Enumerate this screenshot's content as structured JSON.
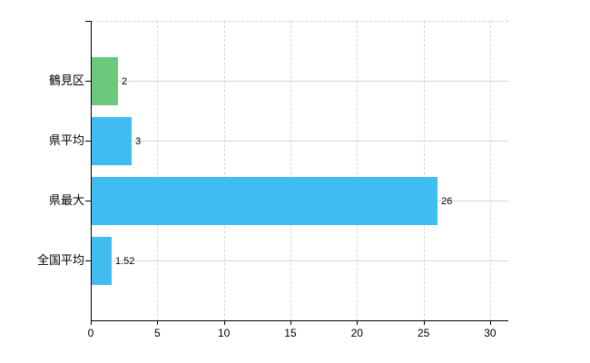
{
  "chart_data": {
    "type": "bar",
    "orientation": "horizontal",
    "title": "",
    "categories": [
      "鶴見区",
      "県平均",
      "県最大",
      "全国平均"
    ],
    "values": [
      2,
      3,
      26,
      1.52
    ],
    "value_labels": [
      "2",
      "3",
      "26",
      "1.52"
    ],
    "bar_colors": [
      "#6cc97c",
      "#3fbdf0",
      "#3fbdf0",
      "#3fbdf0"
    ],
    "xticks": [
      0,
      5,
      10,
      15,
      20,
      25,
      30
    ],
    "xtick_labels": [
      "0",
      "5",
      "10",
      "15",
      "20",
      "25",
      "30"
    ],
    "xlim": [
      0,
      31.3
    ],
    "grid": {
      "vertical": "dashed",
      "horizontal": "solid",
      "top_border": "dashed"
    },
    "legend": null
  },
  "colors": {
    "background": "#ffffff",
    "axis": "#000000",
    "gridline": "#d6d6d6",
    "bar_blue": "#3fbdf0",
    "bar_green": "#6cc97c",
    "text": "#000000"
  }
}
